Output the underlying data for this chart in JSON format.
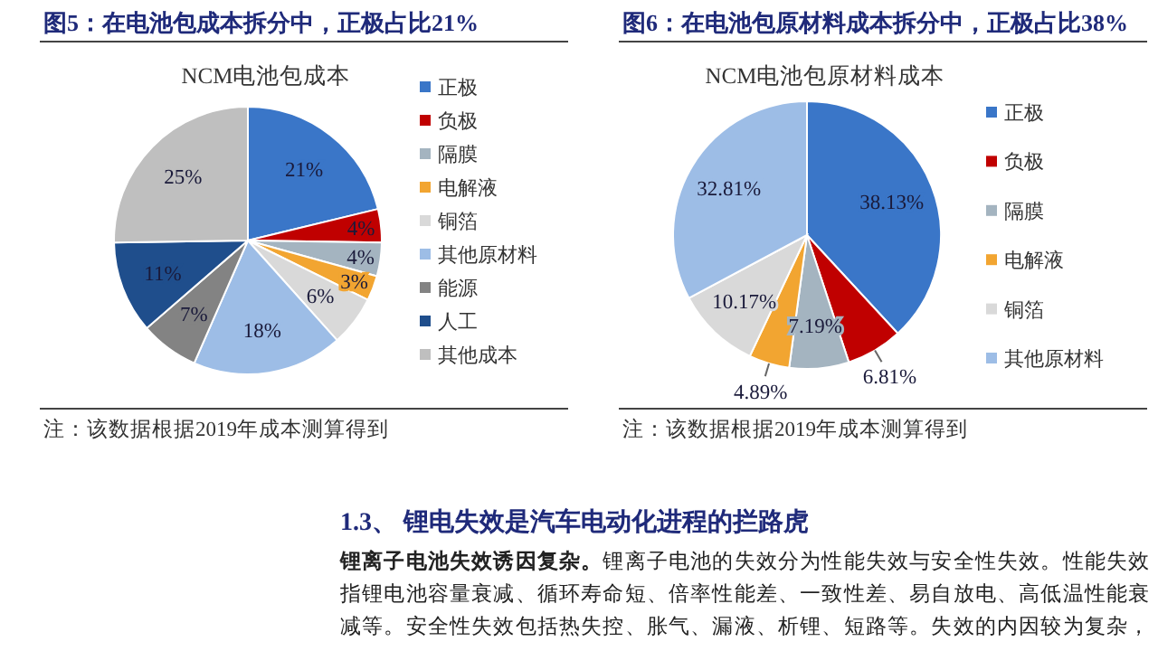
{
  "chart_data": [
    {
      "type": "pie",
      "title": "图5：在电池包成本拆分中，正极占比21%",
      "subtitle": "NCM电池包成本",
      "categories": [
        "正极",
        "负极",
        "隔膜",
        "电解液",
        "铜箔",
        "其他原材料",
        "能源",
        "人工",
        "其他成本"
      ],
      "values": [
        21,
        4,
        4,
        3,
        6,
        18,
        7,
        11,
        25
      ],
      "value_labels": [
        "21%",
        "4%",
        "4%",
        "3%",
        "6%",
        "18%",
        "7%",
        "11%",
        "25%"
      ],
      "colors": [
        "#3a76c8",
        "#c00000",
        "#a4b4c0",
        "#f2a531",
        "#d9d9d9",
        "#9dbde6",
        "#838383",
        "#1f4e8c",
        "#bfbfbf"
      ],
      "data_labels": true,
      "legend": "right",
      "annotations": [
        "注：该数据根据2019年成本测算得到"
      ]
    },
    {
      "type": "pie",
      "title": "图6：在电池包原材料成本拆分中，正极占比38%",
      "subtitle": "NCM电池包原材料成本",
      "categories": [
        "正极",
        "负极",
        "隔膜",
        "电解液",
        "铜箔",
        "其他原材料"
      ],
      "values": [
        38.13,
        6.81,
        7.19,
        4.89,
        10.17,
        32.81
      ],
      "value_labels": [
        "38.13%",
        "6.81%",
        "7.19%",
        "4.89%",
        "10.17%",
        "32.81%"
      ],
      "colors": [
        "#3a76c8",
        "#c00000",
        "#a4b4c0",
        "#f2a531",
        "#d9d9d9",
        "#9dbde6"
      ],
      "data_labels": true,
      "legend": "right",
      "annotations": [
        "注：该数据根据2019年成本测算得到"
      ]
    },
    {
      "type": "other",
      "annotations": [
        "1.3、 锂电失效是汽车电动化进程的拦路虎",
        "锂离子电池失效诱因复杂。",
        "锂离子电池的失效分为性能失效与安全性失效。性能失效指锂电池容量衰减、循环寿命短、倍率性能差、一致性差、易自放电、高低温性能衰减等。安全性失效包括热失控、胀气、漏液、析锂、短路等。失效的内因较为复杂，"
      ]
    }
  ]
}
